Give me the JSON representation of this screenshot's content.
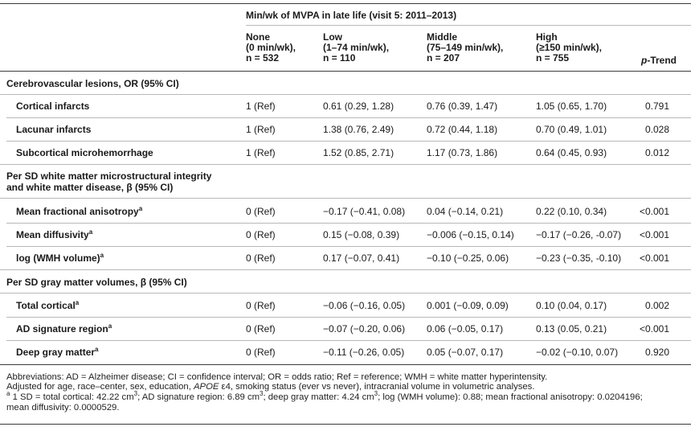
{
  "header": {
    "spanner": "Min/wk of MVPA in late life (visit 5: 2011–2013)",
    "columns": [
      {
        "l1": "None",
        "l2": "(0 min/wk),",
        "l3": "n = 532"
      },
      {
        "l1": "Low",
        "l2": "(1–74 min/wk),",
        "l3": "n = 110"
      },
      {
        "l1": "Middle",
        "l2": "(75–149 min/wk),",
        "l3": "n = 207"
      },
      {
        "l1": "High",
        "l2": "(≥150 min/wk),",
        "l3": "n = 755"
      }
    ],
    "ptrend_p": "p",
    "ptrend_rest": "-Trend"
  },
  "sections": [
    {
      "title": [
        "Cerebrovascular lesions, OR (95% CI)"
      ],
      "rows": [
        {
          "label": "Cortical infarcts",
          "sup": "",
          "none": "1 (Ref)",
          "low": "0.61 (0.29, 1.28)",
          "middle": "0.76 (0.39, 1.47)",
          "high": "1.05 (0.65, 1.70)",
          "p": "0.791"
        },
        {
          "label": "Lacunar infarcts",
          "sup": "",
          "none": "1 (Ref)",
          "low": "1.38 (0.76, 2.49)",
          "middle": "0.72 (0.44, 1.18)",
          "high": "0.70 (0.49, 1.01)",
          "p": "0.028"
        },
        {
          "label": "Subcortical microhemorrhage",
          "sup": "",
          "none": "1 (Ref)",
          "low": "1.52 (0.85, 2.71)",
          "middle": "1.17 (0.73, 1.86)",
          "high": "0.64 (0.45, 0.93)",
          "p": "0.012"
        }
      ]
    },
    {
      "title": [
        "Per SD white matter microstructural integrity",
        "and white matter disease, β (95% CI)"
      ],
      "rows": [
        {
          "label": "Mean fractional anisotropy",
          "sup": "a",
          "none": "0 (Ref)",
          "low": "−0.17 (−0.41, 0.08)",
          "middle": "0.04 (−0.14, 0.21)",
          "high": "0.22 (0.10, 0.34)",
          "p": "<0.001"
        },
        {
          "label": "Mean diffusivity",
          "sup": "a",
          "none": "0 (Ref)",
          "low": "0.15 (−0.08, 0.39)",
          "middle": "−0.006 (−0.15, 0.14)",
          "high": "−0.17 (−0.26, -0.07)",
          "p": "<0.001"
        },
        {
          "label": "log (WMH volume)",
          "sup": "a",
          "none": "0 (Ref)",
          "low": "0.17 (−0.07, 0.41)",
          "middle": "−0.10 (−0.25, 0.06)",
          "high": "−0.23 (−0.35, -0.10)",
          "p": "<0.001"
        }
      ]
    },
    {
      "title": [
        "Per SD gray matter volumes, β (95% CI)"
      ],
      "rows": [
        {
          "label": "Total cortical",
          "sup": "a",
          "none": "0 (Ref)",
          "low": "−0.06 (−0.16, 0.05)",
          "middle": "0.001 (−0.09, 0.09)",
          "high": "0.10 (0.04, 0.17)",
          "p": "0.002"
        },
        {
          "label": "AD signature region",
          "sup": "a",
          "none": "0 (Ref)",
          "low": "−0.07 (−0.20, 0.06)",
          "middle": "0.06 (−0.05, 0.17)",
          "high": "0.13 (0.05, 0.21)",
          "p": "<0.001"
        },
        {
          "label": "Deep gray matter",
          "sup": "a",
          "none": "0 (Ref)",
          "low": "−0.11 (−0.26, 0.05)",
          "middle": "0.05 (−0.07, 0.17)",
          "high": "−0.02 (−0.10, 0.07)",
          "p": "0.920"
        }
      ]
    }
  ],
  "footnotes": {
    "abbrev": "Abbreviations: AD = Alzheimer disease; CI = confidence interval; OR = odds ratio; Ref = reference; WMH = white matter hyperintensity.",
    "adj_pre": "Adjusted for age, race–center, sex, education, ",
    "adj_gene": "APOE",
    "adj_post": " ε4, smoking status (ever vs never), intracranial volume in volumetric analyses.",
    "a_marker": "a",
    "a_p1": " 1 SD = total cortical: 42.22 cm",
    "a_p2": "; AD signature region: 6.89 cm",
    "a_p3": "; deep gray matter: 4.24 cm",
    "a_p4": "; log (WMH volume): 0.88; mean fractional anisotropy: 0.0204196;",
    "cube": "3",
    "a_line2": "mean diffusivity: 0.0000529."
  }
}
